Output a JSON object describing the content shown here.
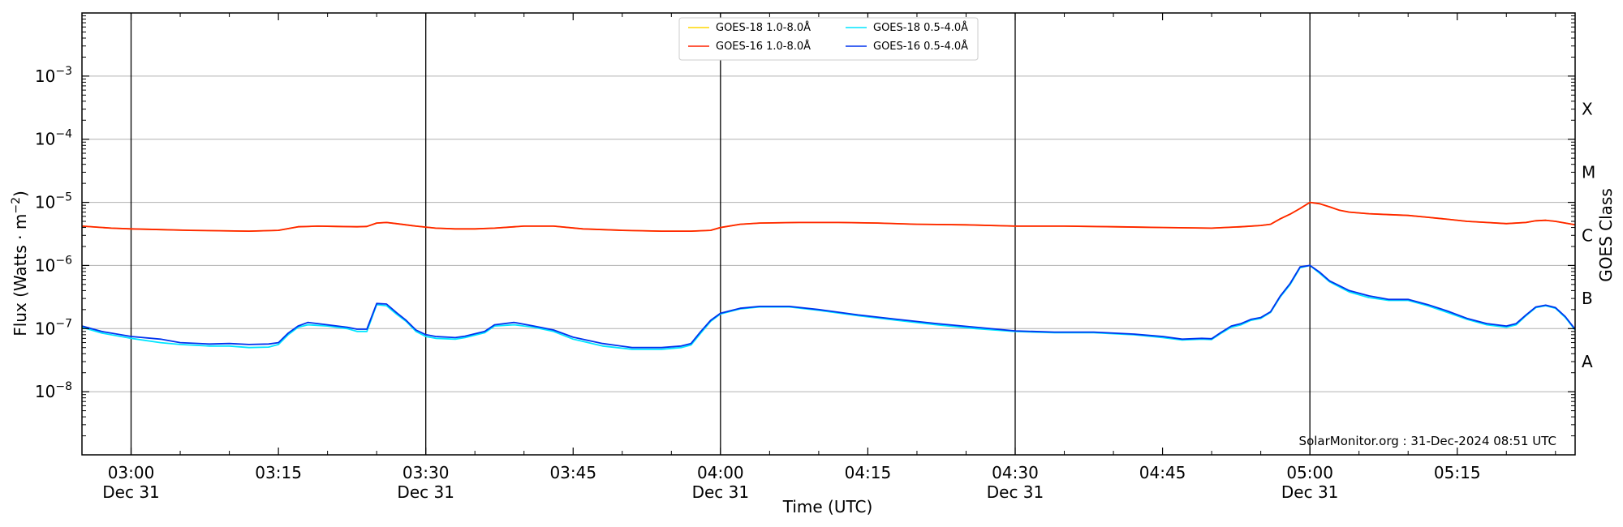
{
  "chart_data": {
    "type": "line",
    "xlabel": "Time (UTC)",
    "ylabel": "Flux (Watts · m",
    "ylabel_sup": "−2",
    "ylabel_close": ")",
    "right_label": "GOES Class",
    "y_scale": "log",
    "ylim": [
      1e-09,
      0.01
    ],
    "x_range": [
      "02:55",
      "05:27"
    ],
    "grid": "horizontal",
    "legend_position": "top-center",
    "credit": "SolarMonitor.org : 31-Dec-2024 08:51 UTC",
    "y_ticks": [
      {
        "value": 1e-08,
        "base": "10",
        "exp": "−8"
      },
      {
        "value": 1e-07,
        "base": "10",
        "exp": "−7"
      },
      {
        "value": 1e-06,
        "base": "10",
        "exp": "−6"
      },
      {
        "value": 1e-05,
        "base": "10",
        "exp": "−5"
      },
      {
        "value": 0.0001,
        "base": "10",
        "exp": "−4"
      },
      {
        "value": 0.001,
        "base": "10",
        "exp": "−3"
      }
    ],
    "x_ticks": [
      {
        "time": "03:00",
        "line1": "03:00",
        "line2": "Dec 31",
        "vline": true
      },
      {
        "time": "03:15",
        "line1": "03:15",
        "line2": "",
        "vline": false
      },
      {
        "time": "03:30",
        "line1": "03:30",
        "line2": "Dec 31",
        "vline": true
      },
      {
        "time": "03:45",
        "line1": "03:45",
        "line2": "",
        "vline": false
      },
      {
        "time": "04:00",
        "line1": "04:00",
        "line2": "Dec 31",
        "vline": true
      },
      {
        "time": "04:15",
        "line1": "04:15",
        "line2": "",
        "vline": false
      },
      {
        "time": "04:30",
        "line1": "04:30",
        "line2": "Dec 31",
        "vline": true
      },
      {
        "time": "04:45",
        "line1": "04:45",
        "line2": "",
        "vline": false
      },
      {
        "time": "05:00",
        "line1": "05:00",
        "line2": "Dec 31",
        "vline": true
      },
      {
        "time": "05:15",
        "line1": "05:15",
        "line2": "",
        "vline": false
      }
    ],
    "class_labels": [
      {
        "label": "A",
        "value": 3e-08
      },
      {
        "label": "B",
        "value": 3e-07
      },
      {
        "label": "C",
        "value": 3e-06
      },
      {
        "label": "M",
        "value": 3e-05
      },
      {
        "label": "X",
        "value": 0.0003
      }
    ],
    "legend": [
      {
        "name": "GOES-18 1.0-8.0Å",
        "color": "#ffd700"
      },
      {
        "name": "GOES-16 1.0-8.0Å",
        "color": "#ff2200"
      },
      {
        "name": "GOES-18 0.5-4.0Å",
        "color": "#00e5ff"
      },
      {
        "name": "GOES-16 0.5-4.0Å",
        "color": "#0033ee"
      }
    ],
    "series": [
      {
        "name": "GOES-18 1.0-8.0Å",
        "color": "#ffd700",
        "x": [
          "02:55",
          "02:58",
          "03:00",
          "03:03",
          "03:06",
          "03:09",
          "03:12",
          "03:15",
          "03:17",
          "03:19",
          "03:21",
          "03:23",
          "03:24",
          "03:25",
          "03:26",
          "03:27",
          "03:29",
          "03:31",
          "03:33",
          "03:35",
          "03:37",
          "03:40",
          "03:43",
          "03:46",
          "03:50",
          "03:54",
          "03:57",
          "03:59",
          "04:00",
          "04:02",
          "04:04",
          "04:08",
          "04:12",
          "04:16",
          "04:20",
          "04:25",
          "04:30",
          "04:35",
          "04:40",
          "04:45",
          "04:50",
          "04:53",
          "04:55",
          "04:56",
          "04:57",
          "04:58",
          "04:59",
          "05:00",
          "05:01",
          "05:02",
          "05:03",
          "05:04",
          "05:06",
          "05:08",
          "05:10",
          "05:12",
          "05:14",
          "05:16",
          "05:18",
          "05:20",
          "05:22",
          "05:23",
          "05:24",
          "05:25",
          "05:27"
        ],
        "y": [
          4.2e-06,
          3.9e-06,
          3.8e-06,
          3.7e-06,
          3.6e-06,
          3.55e-06,
          3.5e-06,
          3.6e-06,
          4.1e-06,
          4.2e-06,
          4.15e-06,
          4.1e-06,
          4.15e-06,
          4.7e-06,
          4.8e-06,
          4.6e-06,
          4.2e-06,
          3.9e-06,
          3.8e-06,
          3.8e-06,
          3.9e-06,
          4.2e-06,
          4.2e-06,
          3.8e-06,
          3.6e-06,
          3.5e-06,
          3.5e-06,
          3.6e-06,
          4e-06,
          4.5e-06,
          4.7e-06,
          4.8e-06,
          4.8e-06,
          4.7e-06,
          4.5e-06,
          4.4e-06,
          4.2e-06,
          4.2e-06,
          4.1e-06,
          4e-06,
          3.9e-06,
          4.1e-06,
          4.3e-06,
          4.5e-06,
          5.5e-06,
          6.5e-06,
          8e-06,
          1e-05,
          9.5e-06,
          8.5e-06,
          7.5e-06,
          7e-06,
          6.6e-06,
          6.4e-06,
          6.2e-06,
          5.8e-06,
          5.4e-06,
          5e-06,
          4.8e-06,
          4.6e-06,
          4.8e-06,
          5.1e-06,
          5.2e-06,
          5e-06,
          4.4e-06
        ]
      },
      {
        "name": "GOES-16 1.0-8.0Å",
        "color": "#ff2200",
        "x": [
          "02:55",
          "02:58",
          "03:00",
          "03:03",
          "03:06",
          "03:09",
          "03:12",
          "03:15",
          "03:17",
          "03:19",
          "03:21",
          "03:23",
          "03:24",
          "03:25",
          "03:26",
          "03:27",
          "03:29",
          "03:31",
          "03:33",
          "03:35",
          "03:37",
          "03:40",
          "03:43",
          "03:46",
          "03:50",
          "03:54",
          "03:57",
          "03:59",
          "04:00",
          "04:02",
          "04:04",
          "04:08",
          "04:12",
          "04:16",
          "04:20",
          "04:25",
          "04:30",
          "04:35",
          "04:40",
          "04:45",
          "04:50",
          "04:53",
          "04:55",
          "04:56",
          "04:57",
          "04:58",
          "04:59",
          "05:00",
          "05:01",
          "05:02",
          "05:03",
          "05:04",
          "05:06",
          "05:08",
          "05:10",
          "05:12",
          "05:14",
          "05:16",
          "05:18",
          "05:20",
          "05:22",
          "05:23",
          "05:24",
          "05:25",
          "05:27"
        ],
        "y": [
          4.2e-06,
          3.9e-06,
          3.8e-06,
          3.7e-06,
          3.6e-06,
          3.55e-06,
          3.5e-06,
          3.6e-06,
          4.1e-06,
          4.2e-06,
          4.15e-06,
          4.1e-06,
          4.15e-06,
          4.7e-06,
          4.8e-06,
          4.6e-06,
          4.2e-06,
          3.9e-06,
          3.8e-06,
          3.8e-06,
          3.9e-06,
          4.2e-06,
          4.2e-06,
          3.8e-06,
          3.6e-06,
          3.5e-06,
          3.5e-06,
          3.6e-06,
          4e-06,
          4.5e-06,
          4.7e-06,
          4.8e-06,
          4.8e-06,
          4.7e-06,
          4.5e-06,
          4.4e-06,
          4.2e-06,
          4.2e-06,
          4.1e-06,
          4e-06,
          3.9e-06,
          4.1e-06,
          4.3e-06,
          4.5e-06,
          5.5e-06,
          6.5e-06,
          8e-06,
          1e-05,
          9.5e-06,
          8.5e-06,
          7.5e-06,
          7e-06,
          6.6e-06,
          6.4e-06,
          6.2e-06,
          5.8e-06,
          5.4e-06,
          5e-06,
          4.8e-06,
          4.6e-06,
          4.8e-06,
          5.1e-06,
          5.2e-06,
          5e-06,
          4.4e-06
        ]
      },
      {
        "name": "GOES-18 0.5-4.0Å",
        "color": "#00e5ff",
        "x": [
          "02:55",
          "02:57",
          "03:00",
          "03:03",
          "03:05",
          "03:08",
          "03:10",
          "03:12",
          "03:14",
          "03:15",
          "03:16",
          "03:17",
          "03:18",
          "03:20",
          "03:22",
          "03:23",
          "03:24",
          "03:25",
          "03:26",
          "03:27",
          "03:28",
          "03:29",
          "03:30",
          "03:31",
          "03:33",
          "03:34",
          "03:36",
          "03:37",
          "03:39",
          "03:41",
          "03:43",
          "03:45",
          "03:48",
          "03:51",
          "03:54",
          "03:56",
          "03:57",
          "03:58",
          "03:59",
          "04:00",
          "04:02",
          "04:04",
          "04:07",
          "04:10",
          "04:14",
          "04:18",
          "04:22",
          "04:26",
          "04:30",
          "04:34",
          "04:38",
          "04:42",
          "04:45",
          "04:47",
          "04:49",
          "04:50",
          "04:51",
          "04:52",
          "04:53",
          "04:54",
          "04:55",
          "04:56",
          "04:57",
          "04:58",
          "04:59",
          "05:00",
          "05:01",
          "05:02",
          "05:04",
          "05:06",
          "05:08",
          "05:10",
          "05:12",
          "05:14",
          "05:16",
          "05:18",
          "05:20",
          "05:21",
          "05:22",
          "05:23",
          "05:24",
          "05:25",
          "05:26",
          "05:27"
        ],
        "y": [
          1.05e-07,
          8.5e-08,
          7e-08,
          6e-08,
          5.6e-08,
          5.3e-08,
          5.3e-08,
          5e-08,
          5.1e-08,
          5.6e-08,
          8e-08,
          1.05e-07,
          1.15e-07,
          1.1e-07,
          1e-07,
          9e-08,
          9e-08,
          2.4e-07,
          2.3e-07,
          1.7e-07,
          1.3e-07,
          9e-08,
          7.5e-08,
          7e-08,
          6.8e-08,
          7.2e-08,
          8.6e-08,
          1.1e-07,
          1.15e-07,
          1.05e-07,
          9e-08,
          6.8e-08,
          5.3e-08,
          4.7e-08,
          4.7e-08,
          5e-08,
          5.5e-08,
          8.5e-08,
          1.3e-07,
          1.7e-07,
          2.05e-07,
          2.2e-07,
          2.2e-07,
          1.95e-07,
          1.6e-07,
          1.35e-07,
          1.15e-07,
          1e-07,
          9e-08,
          8.6e-08,
          8.6e-08,
          8e-08,
          7.2e-08,
          6.6e-08,
          6.8e-08,
          6.7e-08,
          8.5e-08,
          1.05e-07,
          1.15e-07,
          1.35e-07,
          1.45e-07,
          1.8e-07,
          3.2e-07,
          5e-07,
          9.2e-07,
          1e-06,
          7.5e-07,
          5.5e-07,
          3.8e-07,
          3.1e-07,
          2.8e-07,
          2.8e-07,
          2.3e-07,
          1.8e-07,
          1.4e-07,
          1.15e-07,
          1.05e-07,
          1.15e-07,
          1.6e-07,
          2.15e-07,
          2.3e-07,
          2.1e-07,
          1.5e-07,
          9.5e-08
        ]
      },
      {
        "name": "GOES-16 0.5-4.0Å",
        "color": "#0033ee",
        "x": [
          "02:55",
          "02:57",
          "03:00",
          "03:03",
          "03:05",
          "03:08",
          "03:10",
          "03:12",
          "03:14",
          "03:15",
          "03:16",
          "03:17",
          "03:18",
          "03:20",
          "03:22",
          "03:23",
          "03:24",
          "03:25",
          "03:26",
          "03:27",
          "03:28",
          "03:29",
          "03:30",
          "03:31",
          "03:33",
          "03:34",
          "03:36",
          "03:37",
          "03:39",
          "03:41",
          "03:43",
          "03:45",
          "03:48",
          "03:51",
          "03:54",
          "03:56",
          "03:57",
          "03:58",
          "03:59",
          "04:00",
          "04:02",
          "04:04",
          "04:07",
          "04:10",
          "04:14",
          "04:18",
          "04:22",
          "04:26",
          "04:30",
          "04:34",
          "04:38",
          "04:42",
          "04:45",
          "04:47",
          "04:49",
          "04:50",
          "04:51",
          "04:52",
          "04:53",
          "04:54",
          "04:55",
          "04:56",
          "04:57",
          "04:58",
          "04:59",
          "05:00",
          "05:01",
          "05:02",
          "05:04",
          "05:06",
          "05:08",
          "05:10",
          "05:12",
          "05:14",
          "05:16",
          "05:18",
          "05:20",
          "05:21",
          "05:22",
          "05:23",
          "05:24",
          "05:25",
          "05:26",
          "05:27"
        ],
        "y": [
          1.1e-07,
          9e-08,
          7.5e-08,
          6.8e-08,
          6e-08,
          5.7e-08,
          5.8e-08,
          5.6e-08,
          5.7e-08,
          6e-08,
          8.5e-08,
          1.1e-07,
          1.25e-07,
          1.15e-07,
          1.05e-07,
          9.8e-08,
          9.8e-08,
          2.5e-07,
          2.45e-07,
          1.8e-07,
          1.35e-07,
          9.5e-08,
          8e-08,
          7.5e-08,
          7.2e-08,
          7.6e-08,
          9e-08,
          1.15e-07,
          1.25e-07,
          1.1e-07,
          9.5e-08,
          7.3e-08,
          5.8e-08,
          5e-08,
          5e-08,
          5.3e-08,
          5.8e-08,
          9e-08,
          1.35e-07,
          1.75e-07,
          2.1e-07,
          2.25e-07,
          2.25e-07,
          2e-07,
          1.65e-07,
          1.4e-07,
          1.2e-07,
          1.05e-07,
          9.2e-08,
          8.8e-08,
          8.8e-08,
          8.2e-08,
          7.5e-08,
          6.8e-08,
          7e-08,
          6.9e-08,
          8.8e-08,
          1.1e-07,
          1.2e-07,
          1.4e-07,
          1.5e-07,
          1.85e-07,
          3.3e-07,
          5.2e-07,
          9.5e-07,
          1e-06,
          7.8e-07,
          5.7e-07,
          4e-07,
          3.3e-07,
          2.9e-07,
          2.9e-07,
          2.4e-07,
          1.9e-07,
          1.45e-07,
          1.2e-07,
          1.1e-07,
          1.2e-07,
          1.65e-07,
          2.2e-07,
          2.35e-07,
          2.15e-07,
          1.55e-07,
          9.8e-08
        ]
      }
    ]
  }
}
